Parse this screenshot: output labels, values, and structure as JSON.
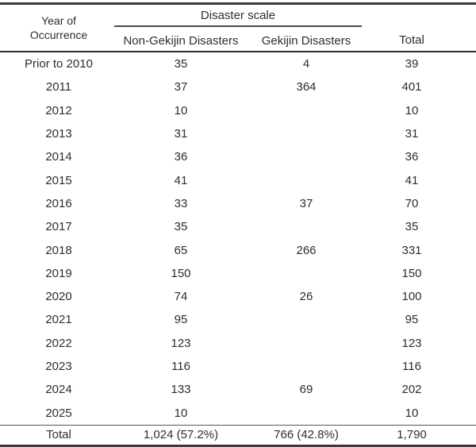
{
  "colors": {
    "text": "#2d2d2d",
    "rule_heavy": "#3a3a3a",
    "rule_medium": "#2e2e2e",
    "rule_light": "#555555",
    "background": "#ffffff"
  },
  "table": {
    "header": {
      "year_line1": "Year of",
      "year_line2": "Occurrence",
      "spanner": "Disaster scale",
      "columns": [
        "Non-Gekijin Disasters",
        "Gekijin Disasters"
      ],
      "total": "Total"
    },
    "rows": [
      [
        "Prior to 2010",
        "35",
        "4",
        "39"
      ],
      [
        "2011",
        "37",
        "364",
        "401"
      ],
      [
        "2012",
        "10",
        "",
        "10"
      ],
      [
        "2013",
        "31",
        "",
        "31"
      ],
      [
        "2014",
        "36",
        "",
        "36"
      ],
      [
        "2015",
        "41",
        "",
        "41"
      ],
      [
        "2016",
        "33",
        "37",
        "70"
      ],
      [
        "2017",
        "35",
        "",
        "35"
      ],
      [
        "2018",
        "65",
        "266",
        "331"
      ],
      [
        "2019",
        "150",
        "",
        "150"
      ],
      [
        "2020",
        "74",
        "26",
        "100"
      ],
      [
        "2021",
        "95",
        "",
        "95"
      ],
      [
        "2022",
        "123",
        "",
        "123"
      ],
      [
        "2023",
        "116",
        "",
        "116"
      ],
      [
        "2024",
        "133",
        "69",
        "202"
      ],
      [
        "2025",
        "10",
        "",
        "10"
      ]
    ],
    "footer": [
      "Total",
      "1,024 (57.2%)",
      "766 (42.8%)",
      "1,790"
    ]
  },
  "chart_data": {
    "type": "table",
    "title": "Disaster scale by year of occurrence",
    "categories": [
      "Prior to 2010",
      "2011",
      "2012",
      "2013",
      "2014",
      "2015",
      "2016",
      "2017",
      "2018",
      "2019",
      "2020",
      "2021",
      "2022",
      "2023",
      "2024",
      "2025"
    ],
    "series": [
      {
        "name": "Non-Gekijin Disasters",
        "values": [
          35,
          37,
          10,
          31,
          36,
          41,
          33,
          35,
          65,
          150,
          74,
          95,
          123,
          116,
          133,
          10
        ],
        "total": "1,024 (57.2%)"
      },
      {
        "name": "Gekijin Disasters",
        "values": [
          4,
          364,
          null,
          null,
          null,
          null,
          37,
          null,
          266,
          null,
          26,
          null,
          null,
          null,
          69,
          null
        ],
        "total": "766 (42.8%)"
      },
      {
        "name": "Total",
        "values": [
          39,
          401,
          10,
          31,
          36,
          41,
          70,
          35,
          331,
          150,
          100,
          95,
          123,
          116,
          202,
          10
        ],
        "total": "1,790"
      }
    ]
  }
}
